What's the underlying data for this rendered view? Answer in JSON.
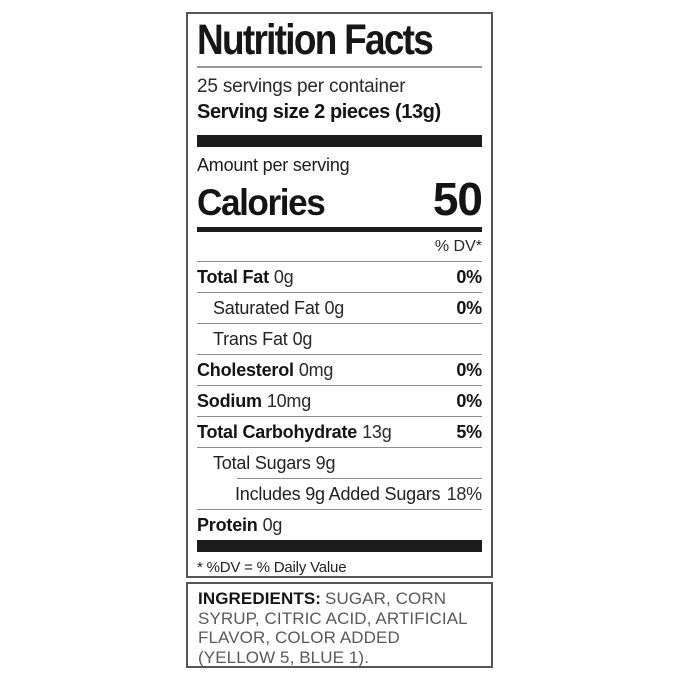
{
  "label": {
    "title": "Nutrition Facts",
    "servings_per_container": "25 servings per container",
    "serving_size": "Serving size 2 pieces (13g)",
    "amount_per_serving": "Amount per serving",
    "calories_label": "Calories",
    "calories_value": "50",
    "dv_header": "% DV*",
    "rows": [
      {
        "name": "Total Fat",
        "qty": "0g",
        "dv": "0%"
      },
      {
        "name": "Saturated Fat",
        "qty": "0g",
        "dv": "0%"
      },
      {
        "name": "Trans Fat",
        "qty": "0g",
        "dv": ""
      },
      {
        "name": "Cholesterol",
        "qty": "0mg",
        "dv": "0%"
      },
      {
        "name": "Sodium",
        "qty": "10mg",
        "dv": "0%"
      },
      {
        "name": "Total Carbohydrate",
        "qty": "13g",
        "dv": "5%"
      },
      {
        "name": "Total Sugars",
        "qty": "9g",
        "dv": ""
      },
      {
        "name": "Includes 9g Added Sugars",
        "qty": "",
        "dv": "18%"
      },
      {
        "name": "Protein",
        "qty": "0g",
        "dv": ""
      }
    ],
    "footnote": "* %DV = % Daily Value"
  },
  "ingredients": {
    "label": "INGREDIENTS:",
    "text": "SUGAR, CORN SYRUP, CITRIC ACID, ARTIFICIAL FLAVOR, COLOR ADDED (YELLOW 5, BLUE 1)."
  },
  "colors": {
    "text_black": "#161616",
    "bar_black": "#1c1c1c",
    "box_border_gray": "#55565a",
    "hairline_gray": "#8e8e8e",
    "ingredients_gray": "#595a5e",
    "background": "#ffffff"
  }
}
